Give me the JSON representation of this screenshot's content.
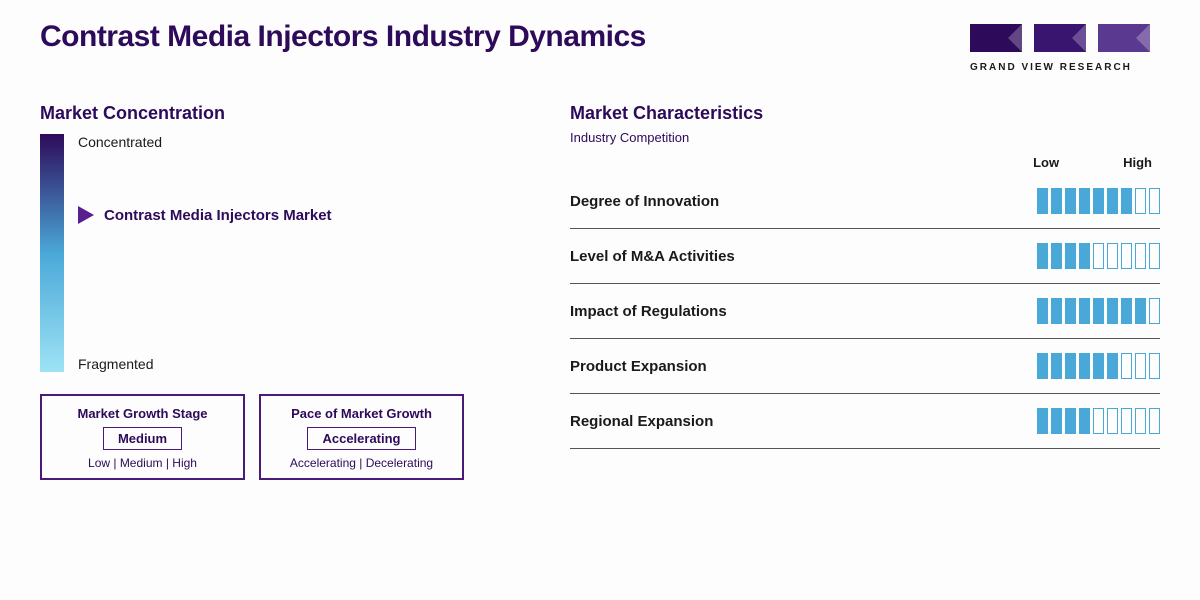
{
  "title": "Contrast Media Injectors Industry Dynamics",
  "title_color": "#2d0a5a",
  "brand": {
    "text": "GRAND VIEW RESEARCH",
    "text_color": "#1a1a1a",
    "bar_colors": [
      "#2d0a5a",
      "#3a1570",
      "#5a3a90"
    ]
  },
  "left": {
    "section_title": "Market Concentration",
    "section_title_color": "#2d0a5a",
    "gradient": {
      "top": "#2d0a5a",
      "mid": "#4aa8d8",
      "bot": "#9ee3f5",
      "top_label": "Concentrated",
      "bot_label": "Fragmented",
      "label_color": "#1a1a1a"
    },
    "marker": {
      "color": "#5a1f8f",
      "label": "Contrast Media Injectors Market",
      "label_color": "#2d0a5a"
    },
    "box_border": "#4a1a7a",
    "boxes": [
      {
        "title": "Market Growth Stage",
        "value": "Medium",
        "options": "Low | Medium | High"
      },
      {
        "title": "Pace of Market Growth",
        "value": "Accelerating",
        "options": "Accelerating | Decelerating"
      }
    ],
    "box_text_color": "#2d0a5a"
  },
  "right": {
    "section_title": "Market Characteristics",
    "section_title_color": "#2d0a5a",
    "section_sub": "Industry Competition",
    "section_sub_color": "#2d0a5a",
    "low_label": "Low",
    "high_label": "High",
    "header_color": "#1a1a1a",
    "row_border": "#555555",
    "seg_total": 9,
    "seg_fill": "#4aa8d8",
    "seg_empty_border": "#4aa8d8",
    "rows": [
      {
        "label": "Degree of Innovation",
        "filled": 7
      },
      {
        "label": "Level of M&A Activities",
        "filled": 4
      },
      {
        "label": "Impact of Regulations",
        "filled": 8
      },
      {
        "label": "Product Expansion",
        "filled": 6
      },
      {
        "label": "Regional Expansion",
        "filled": 4
      }
    ],
    "row_label_color": "#1a1a1a"
  }
}
